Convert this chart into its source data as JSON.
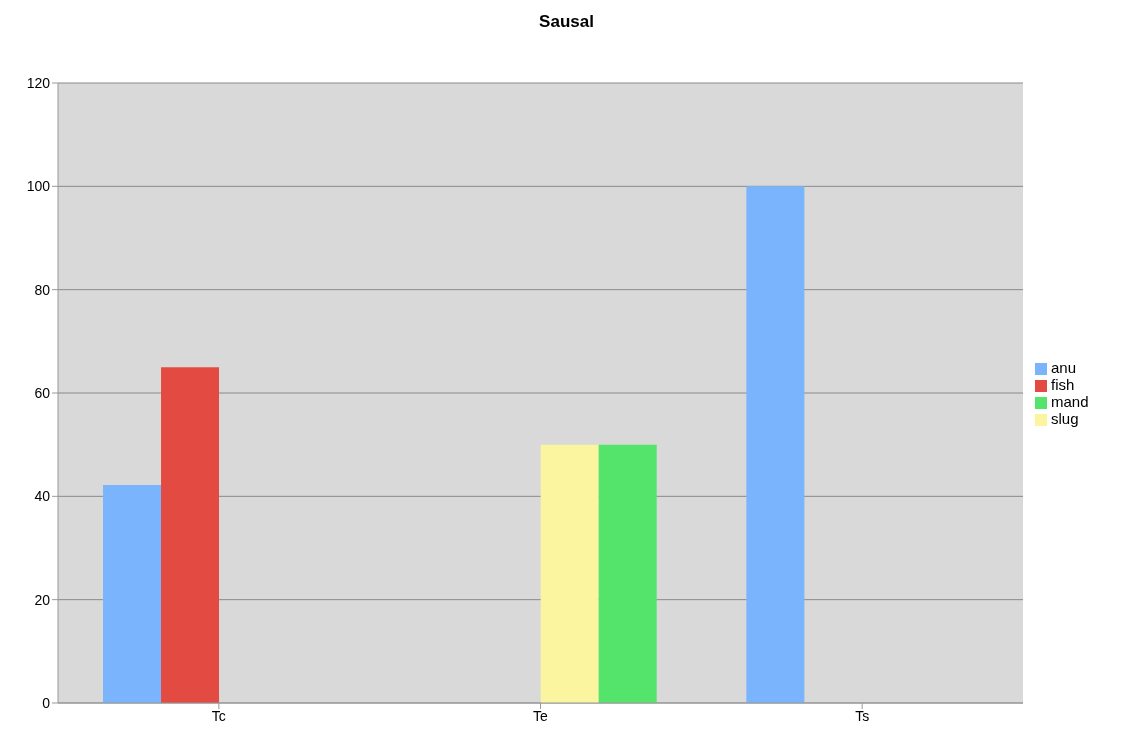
{
  "chart_data": {
    "type": "bar",
    "title": "Sausal",
    "categories": [
      "Tc",
      "Te",
      "Ts"
    ],
    "series": [
      {
        "name": "anu",
        "color": "#7ab4fc",
        "values": [
          42.2,
          null,
          100
        ]
      },
      {
        "name": "fish",
        "color": "#e34a42",
        "values": [
          65,
          null,
          null
        ]
      },
      {
        "name": "slug",
        "color": "#fbf5a0",
        "values": [
          null,
          50,
          null
        ]
      },
      {
        "name": "mand",
        "color": "#55e46b",
        "values": [
          null,
          50,
          null
        ]
      }
    ],
    "ylim": [
      0,
      120
    ],
    "yticks": [
      0,
      20,
      40,
      60,
      80,
      100,
      120
    ],
    "grid": "y",
    "legend": "right"
  }
}
